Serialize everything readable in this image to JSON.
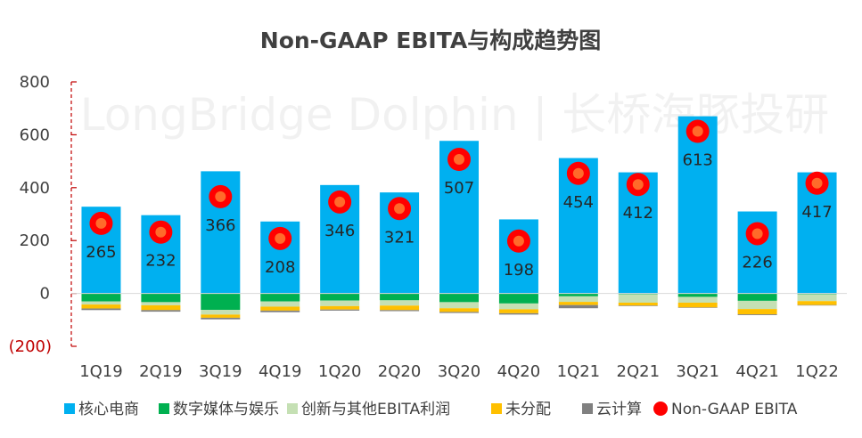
{
  "chart_data": {
    "type": "bar",
    "title": "Non-GAAP EBITA与构成趋势图",
    "watermark": "LongBridge Dolphin | 长桥海豚投研",
    "categories": [
      "1Q19",
      "2Q19",
      "3Q19",
      "4Q19",
      "1Q20",
      "2Q20",
      "3Q20",
      "4Q20",
      "1Q21",
      "2Q21",
      "3Q21",
      "4Q21",
      "1Q22"
    ],
    "ylim": [
      -200,
      800
    ],
    "yticks": [
      {
        "value": 800,
        "label": "800"
      },
      {
        "value": 600,
        "label": "600"
      },
      {
        "value": 400,
        "label": "400"
      },
      {
        "value": 200,
        "label": "200"
      },
      {
        "value": 0,
        "label": "0"
      },
      {
        "value": -200,
        "label": "(200)"
      }
    ],
    "stacked": true,
    "series": [
      {
        "name": "核心电商",
        "color": "#00b0f0",
        "values": [
          328,
          296,
          462,
          272,
          410,
          382,
          577,
          280,
          512,
          458,
          670,
          310,
          458
        ]
      },
      {
        "name": "数字媒体与娱乐",
        "color": "#00b050",
        "values": [
          -30,
          -33,
          -62,
          -30,
          -27,
          -26,
          -33,
          -38,
          -11,
          -3,
          -13,
          -28,
          -3
        ]
      },
      {
        "name": "创新与其他EBITA利润",
        "color": "#c5e0b4",
        "values": [
          -12,
          -12,
          -18,
          -20,
          -21,
          -20,
          -23,
          -22,
          -21,
          -32,
          -22,
          -31,
          -26
        ]
      },
      {
        "name": "未分配",
        "color": "#ffc000",
        "values": [
          -15,
          -18,
          -12,
          -15,
          -13,
          -17,
          -14,
          -15,
          -12,
          -11,
          -18,
          -20,
          -15
        ]
      },
      {
        "name": "云计算",
        "color": "#808080",
        "values": [
          -6,
          -6,
          -6,
          -6,
          -4,
          -4,
          -4,
          -5,
          -12,
          -2,
          -1,
          -3,
          -1
        ]
      }
    ],
    "ebita": {
      "name": "Non-GAAP EBITA",
      "color": "#ff0000",
      "inner_color": "#ff6a2a",
      "values": [
        265,
        232,
        366,
        208,
        346,
        321,
        507,
        198,
        454,
        412,
        613,
        226,
        417
      ]
    },
    "legend_position": "bottom",
    "grid": false
  }
}
